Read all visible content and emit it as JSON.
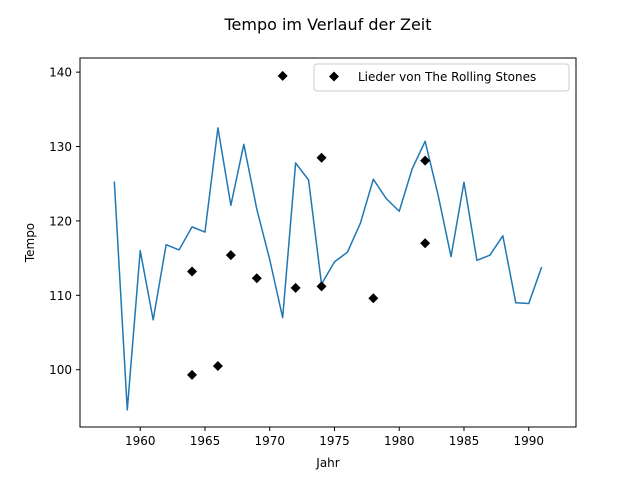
{
  "chart_data": {
    "type": "line",
    "title": "Tempo im Verlauf der Zeit",
    "xlabel": "Jahr",
    "ylabel": "Tempo",
    "xlim": [
      1955.35,
      1993.65
    ],
    "ylim": [
      92.3,
      141.9
    ],
    "xticks": [
      1960,
      1965,
      1970,
      1975,
      1980,
      1985,
      1990
    ],
    "yticks": [
      100,
      110,
      120,
      130,
      140
    ],
    "grid": false,
    "legend_position": "top-right",
    "series": [
      {
        "type": "line",
        "color": "#1f77b4",
        "x": [
          1958,
          1959,
          1960,
          1961,
          1962,
          1963,
          1964,
          1965,
          1966,
          1967,
          1968,
          1969,
          1970,
          1971,
          1972,
          1973,
          1974,
          1975,
          1976,
          1977,
          1978,
          1979,
          1980,
          1981,
          1982,
          1983,
          1984,
          1985,
          1986,
          1987,
          1988,
          1989,
          1990,
          1991
        ],
        "y": [
          125.3,
          94.6,
          116.0,
          106.7,
          116.8,
          116.1,
          119.2,
          118.5,
          132.5,
          122.1,
          130.3,
          121.6,
          114.8,
          107.0,
          127.8,
          125.5,
          111.5,
          114.5,
          115.8,
          119.7,
          125.6,
          123.0,
          121.3,
          127.0,
          130.7,
          123.5,
          115.2,
          125.2,
          114.7,
          115.4,
          118.0,
          109.0,
          108.9,
          113.8
        ]
      },
      {
        "type": "scatter",
        "name": "Lieder von The Rolling Stones",
        "color": "#000000",
        "marker": "diamond",
        "x": [
          1964,
          1964,
          1966,
          1967,
          1969,
          1971,
          1972,
          1974,
          1974,
          1978,
          1982,
          1982
        ],
        "y": [
          113.2,
          99.3,
          100.5,
          115.4,
          112.3,
          139.5,
          111.0,
          128.5,
          111.2,
          109.6,
          128.1,
          117.0
        ]
      }
    ]
  }
}
